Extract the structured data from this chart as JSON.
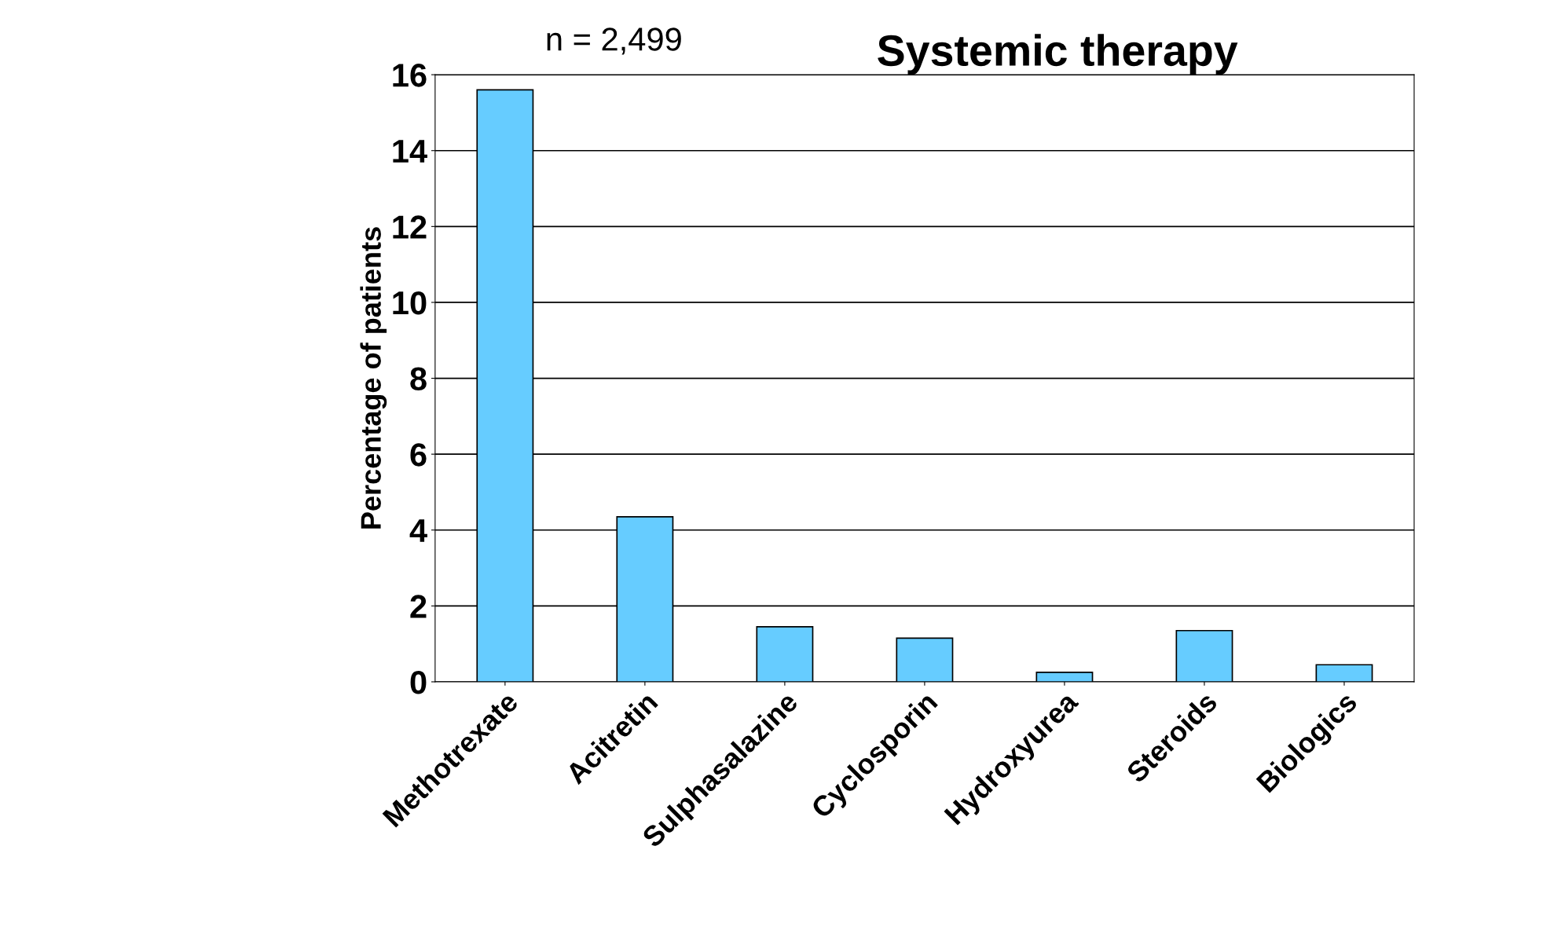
{
  "chart_data": {
    "type": "bar",
    "title": "Systemic therapy",
    "ylabel": "Percentage of patients",
    "categories": [
      "Methotrexate",
      "Acitretin",
      "Sulphasalazine",
      "Cyclosporin",
      "Hydroxyurea",
      "Steroids",
      "Biologics"
    ],
    "values": [
      15.6,
      4.35,
      1.45,
      1.15,
      0.25,
      1.35,
      0.45
    ],
    "color": "#66ccff",
    "ylim": [
      0,
      16
    ],
    "yticks": [
      0,
      2,
      4,
      6,
      8,
      10,
      12,
      14,
      16
    ],
    "grid": "y",
    "annotations": [
      "n = 2,499"
    ]
  }
}
